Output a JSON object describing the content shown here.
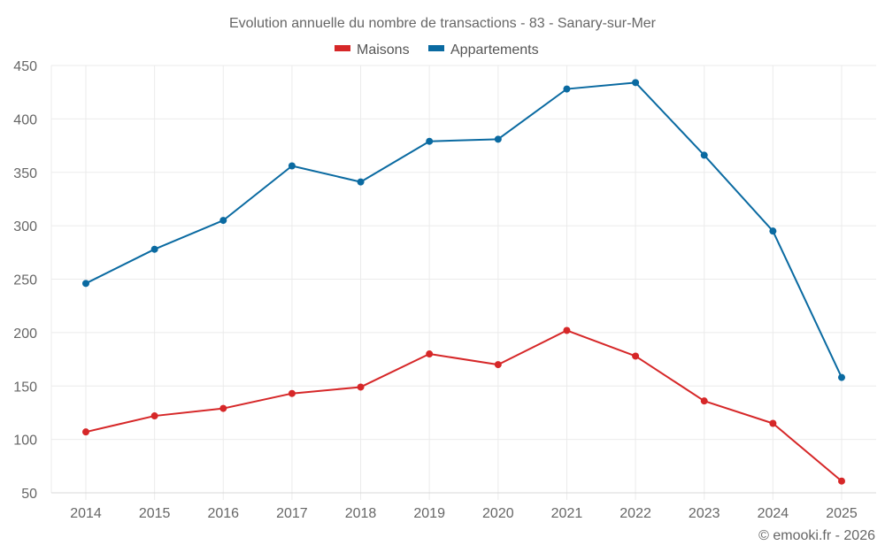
{
  "chart_data": {
    "type": "line",
    "title": "Evolution annuelle du nombre de transactions - 83 - Sanary-sur-Mer",
    "xlabel": "",
    "ylabel": "",
    "x": [
      "2014",
      "2015",
      "2016",
      "2017",
      "2018",
      "2019",
      "2020",
      "2021",
      "2022",
      "2023",
      "2024",
      "2025"
    ],
    "ylim": [
      50,
      450
    ],
    "yticks": [
      50,
      100,
      150,
      200,
      250,
      300,
      350,
      400,
      450
    ],
    "grid": true,
    "legend_position": "top-center",
    "series": [
      {
        "name": "Maisons",
        "color": "#d62728",
        "values": [
          107,
          122,
          129,
          143,
          149,
          180,
          170,
          202,
          178,
          136,
          115,
          61
        ]
      },
      {
        "name": "Appartements",
        "color": "#0a6aa1",
        "values": [
          246,
          278,
          305,
          356,
          341,
          379,
          381,
          428,
          434,
          366,
          295,
          158
        ]
      }
    ],
    "credit": "© emooki.fr - 2026"
  }
}
